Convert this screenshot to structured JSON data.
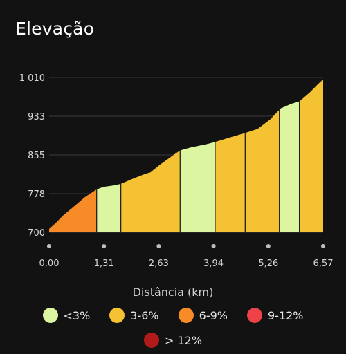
{
  "title": "Elevação",
  "chart_data": {
    "type": "area",
    "title": "",
    "xlabel": "Distância (km)",
    "ylabel": "",
    "x_ticks": [
      "0,00",
      "1,31",
      "2,63",
      "3,94",
      "5,26",
      "6,57"
    ],
    "y_ticks": [
      "700",
      "778",
      "855",
      "933",
      "1 010"
    ],
    "xlim": [
      0,
      6.57
    ],
    "ylim": [
      700,
      1010
    ],
    "profile": [
      {
        "x": 0.0,
        "y": 707
      },
      {
        "x": 0.15,
        "y": 718
      },
      {
        "x": 0.35,
        "y": 735
      },
      {
        "x": 0.6,
        "y": 752
      },
      {
        "x": 0.85,
        "y": 770
      },
      {
        "x": 1.14,
        "y": 786
      },
      {
        "x": 1.3,
        "y": 791
      },
      {
        "x": 1.55,
        "y": 794
      },
      {
        "x": 1.72,
        "y": 797
      },
      {
        "x": 2.0,
        "y": 807
      },
      {
        "x": 2.3,
        "y": 817
      },
      {
        "x": 2.43,
        "y": 820
      },
      {
        "x": 2.65,
        "y": 835
      },
      {
        "x": 2.9,
        "y": 850
      },
      {
        "x": 3.14,
        "y": 864
      },
      {
        "x": 3.4,
        "y": 870
      },
      {
        "x": 3.8,
        "y": 877
      },
      {
        "x": 3.98,
        "y": 881
      },
      {
        "x": 4.3,
        "y": 889
      },
      {
        "x": 4.7,
        "y": 899
      },
      {
        "x": 5.0,
        "y": 907
      },
      {
        "x": 5.3,
        "y": 926
      },
      {
        "x": 5.55,
        "y": 948
      },
      {
        "x": 5.8,
        "y": 957
      },
      {
        "x": 6.0,
        "y": 962
      },
      {
        "x": 6.25,
        "y": 980
      },
      {
        "x": 6.45,
        "y": 997
      },
      {
        "x": 6.57,
        "y": 1006
      }
    ],
    "segments": [
      {
        "from": 0.0,
        "to": 1.14,
        "grade": "6-9%"
      },
      {
        "from": 1.14,
        "to": 1.72,
        "grade": "<3%"
      },
      {
        "from": 1.72,
        "to": 3.14,
        "grade": "3-6%"
      },
      {
        "from": 3.14,
        "to": 3.98,
        "grade": "<3%"
      },
      {
        "from": 3.98,
        "to": 4.7,
        "grade": "3-6%"
      },
      {
        "from": 4.7,
        "to": 5.52,
        "grade": "3-6%"
      },
      {
        "from": 5.52,
        "to": 6.0,
        "grade": "<3%"
      },
      {
        "from": 6.0,
        "to": 6.57,
        "grade": "3-6%"
      }
    ],
    "legend": [
      {
        "label": "<3%",
        "color": "#dcf5a0"
      },
      {
        "label": "3-6%",
        "color": "#f4c233"
      },
      {
        "label": "6-9%",
        "color": "#f68b27"
      },
      {
        "label": "9-12%",
        "color": "#ef4248"
      },
      {
        "label": "> 12%",
        "color": "#b01a1a"
      }
    ],
    "grid": "horizontal"
  }
}
